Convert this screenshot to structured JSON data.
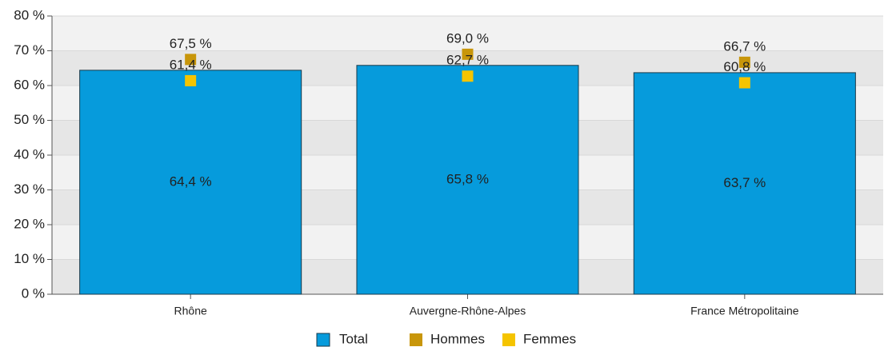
{
  "chart_data": {
    "type": "bar",
    "categories": [
      "Rhône",
      "Auvergne-Rhône-Alpes",
      "France Métropolitaine"
    ],
    "series": [
      {
        "name": "Total",
        "color": "#069bdc",
        "values": [
          64.4,
          65.8,
          63.7
        ],
        "value_labels": [
          "64,4 %",
          "65,8 %",
          "63,7 %"
        ],
        "mark": "bar"
      },
      {
        "name": "Hommes",
        "color": "#c8960a",
        "values": [
          67.5,
          69.0,
          66.7
        ],
        "value_labels": [
          "67,5 %",
          "69,0 %",
          "66,7 %"
        ],
        "mark": "square"
      },
      {
        "name": "Femmes",
        "color": "#f5c400",
        "values": [
          61.4,
          62.7,
          60.8
        ],
        "value_labels": [
          "61,4 %",
          "62,7 %",
          "60,8 %"
        ],
        "mark": "square"
      }
    ],
    "ylim": [
      0,
      80
    ],
    "yticks": [
      {
        "value": 0,
        "label": "0 %"
      },
      {
        "value": 10,
        "label": "10 %"
      },
      {
        "value": 20,
        "label": "20 %"
      },
      {
        "value": 30,
        "label": "30 %"
      },
      {
        "value": 40,
        "label": "40 %"
      },
      {
        "value": 50,
        "label": "50 %"
      },
      {
        "value": 60,
        "label": "60 %"
      },
      {
        "value": 70,
        "label": "70 %"
      },
      {
        "value": 80,
        "label": "80 %"
      }
    ],
    "grid": true
  }
}
